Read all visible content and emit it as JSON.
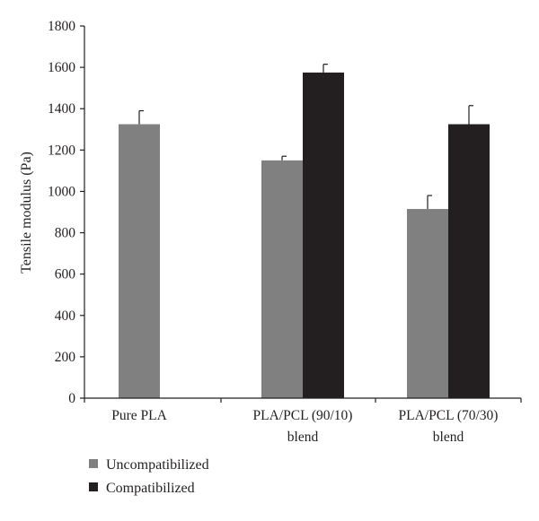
{
  "chart_data": {
    "type": "bar",
    "ylabel": "Tensile modulus (Pa)",
    "xlabel": "",
    "ylim": [
      0,
      1800
    ],
    "yticks": [
      0,
      200,
      400,
      600,
      800,
      1000,
      1200,
      1400,
      1600,
      1800
    ],
    "grid": false,
    "legend_position": "bottom-left",
    "categories": [
      [
        "Pure PLA"
      ],
      [
        "PLA/PCL (90/10)",
        "blend"
      ],
      [
        "PLA/PCL (70/30)",
        "blend"
      ]
    ],
    "series": [
      {
        "name": "Uncompatibilized",
        "color": "#808080",
        "values": [
          1325,
          1150,
          915
        ],
        "errors": [
          65,
          20,
          65
        ]
      },
      {
        "name": "Compatibilized",
        "color": "#231f20",
        "values": [
          null,
          1575,
          1325
        ],
        "errors": [
          null,
          40,
          90
        ]
      }
    ]
  }
}
